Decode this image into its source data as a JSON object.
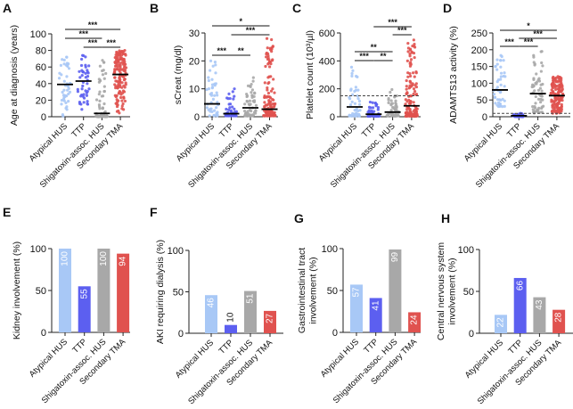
{
  "chart_data": [
    {
      "panel": "A",
      "type": "scatter",
      "ylabel": [
        "Age at diagnosis (years)"
      ],
      "ylim": [
        0,
        100
      ],
      "yticks": [
        0,
        20,
        40,
        60,
        80,
        100
      ],
      "categories": [
        "Atypical HUS",
        "TTP",
        "Shigatoxin-assoc. HUS",
        "Secondary TMA"
      ],
      "medians": [
        39,
        43,
        4,
        51
      ],
      "ranges": [
        [
          0,
          72
        ],
        [
          8,
          74
        ],
        [
          0,
          68
        ],
        [
          2,
          80
        ]
      ],
      "comparisons": [
        {
          "groups": [
            0,
            3
          ],
          "label": "***"
        },
        {
          "groups": [
            0,
            2
          ],
          "label": "***"
        },
        {
          "groups": [
            1,
            2
          ],
          "label": "***"
        },
        {
          "groups": [
            2,
            3
          ],
          "label": "***"
        }
      ]
    },
    {
      "panel": "B",
      "type": "scatter",
      "ylabel": [
        "sCreat (mg/dl)"
      ],
      "ylim": [
        0,
        30
      ],
      "yticks": [
        0,
        10,
        20,
        30
      ],
      "categories": [
        "Atypical HUS",
        "TTP",
        "Shigatoxin-assoc. HUS",
        "Secondary TMA"
      ],
      "medians": [
        4.6,
        1.1,
        3.2,
        2.7
      ],
      "ranges": [
        [
          0.3,
          20
        ],
        [
          0.3,
          10
        ],
        [
          0.3,
          14
        ],
        [
          0.3,
          28
        ]
      ],
      "comparisons": [
        {
          "groups": [
            0,
            3
          ],
          "label": "*"
        },
        {
          "groups": [
            1,
            3
          ],
          "label": "***"
        },
        {
          "groups": [
            0,
            1
          ],
          "label": "***"
        },
        {
          "groups": [
            1,
            2
          ],
          "label": "**"
        }
      ]
    },
    {
      "panel": "C",
      "type": "scatter",
      "ylabel": [
        "Platelet count (10³/µl)"
      ],
      "ylim": [
        0,
        600
      ],
      "yticks": [
        0,
        200,
        400,
        600
      ],
      "reference_line": 150,
      "categories": [
        "Atypical HUS",
        "TTP",
        "Shigatoxin-assoc. HUS",
        "Secondary TMA"
      ],
      "medians": [
        70,
        18,
        33,
        78
      ],
      "ranges": [
        [
          5,
          355
        ],
        [
          3,
          105
        ],
        [
          5,
          195
        ],
        [
          3,
          550
        ]
      ],
      "comparisons": [
        {
          "groups": [
            1,
            3
          ],
          "label": "***"
        },
        {
          "groups": [
            2,
            3
          ],
          "label": "***"
        },
        {
          "groups": [
            0,
            2
          ],
          "label": "**"
        },
        {
          "groups": [
            0,
            1
          ],
          "label": "***"
        },
        {
          "groups": [
            1,
            2
          ],
          "label": "**"
        }
      ]
    },
    {
      "panel": "D",
      "type": "scatter",
      "ylabel": [
        "ADAMTS13 activity (%)"
      ],
      "ylim": [
        0,
        250
      ],
      "yticks": [
        0,
        50,
        100,
        150,
        200,
        250
      ],
      "reference_line": 10,
      "categories": [
        "Atypical HUS",
        "TTP",
        "Shigatoxin-assoc. HUS",
        "Secondary TMA"
      ],
      "medians": [
        80,
        3,
        69,
        63
      ],
      "ranges": [
        [
          30,
          183
        ],
        [
          0,
          10
        ],
        [
          10,
          195
        ],
        [
          10,
          120
        ]
      ],
      "comparisons": [
        {
          "groups": [
            0,
            3
          ],
          "label": "*"
        },
        {
          "groups": [
            1,
            3
          ],
          "label": "***"
        },
        {
          "groups": [
            0,
            1
          ],
          "label": "***"
        },
        {
          "groups": [
            1,
            2
          ],
          "label": "***"
        }
      ]
    },
    {
      "panel": "E",
      "type": "bar",
      "ylabel": [
        "Kidney involvement (%)"
      ],
      "ylim": [
        0,
        100
      ],
      "yticks": [
        0,
        50,
        100
      ],
      "categories": [
        "Atypical HUS",
        "TTP",
        "Shigatoxin-assoc. HUS",
        "Secondary TMA"
      ],
      "values": [
        100,
        55,
        100,
        94
      ]
    },
    {
      "panel": "F",
      "type": "bar",
      "ylabel": [
        "AKI requiring dialysis (%)"
      ],
      "ylim": [
        0,
        100
      ],
      "yticks": [
        0,
        50,
        100
      ],
      "categories": [
        "Atypical HUS",
        "TTP",
        "Shigatoxin-assoc. HUS",
        "Secondary TMA"
      ],
      "values": [
        46,
        10,
        51,
        27
      ]
    },
    {
      "panel": "G",
      "type": "bar",
      "ylabel": [
        "Gastrointestinal tract",
        "involvement (%)"
      ],
      "ylim": [
        0,
        100
      ],
      "yticks": [
        0,
        50,
        100
      ],
      "categories": [
        "Atypical HUS",
        "TTP",
        "Shigatoxin-assoc. HUS",
        "Secondary TMA"
      ],
      "values": [
        57,
        41,
        99,
        24
      ]
    },
    {
      "panel": "H",
      "type": "bar",
      "ylabel": [
        "Central nervous system",
        "involvement (%)"
      ],
      "ylim": [
        0,
        100
      ],
      "yticks": [
        0,
        50,
        100
      ],
      "categories": [
        "Atypical HUS",
        "TTP",
        "Shigatoxin-assoc. HUS",
        "Secondary TMA"
      ],
      "values": [
        22,
        66,
        43,
        28
      ]
    }
  ],
  "colors": {
    "Atypical HUS": "#a8c8f6",
    "TTP": "#5c5ff0",
    "Shigatoxin-assoc. HUS": "#a8a8a8",
    "Secondary TMA": "#e0524f"
  }
}
